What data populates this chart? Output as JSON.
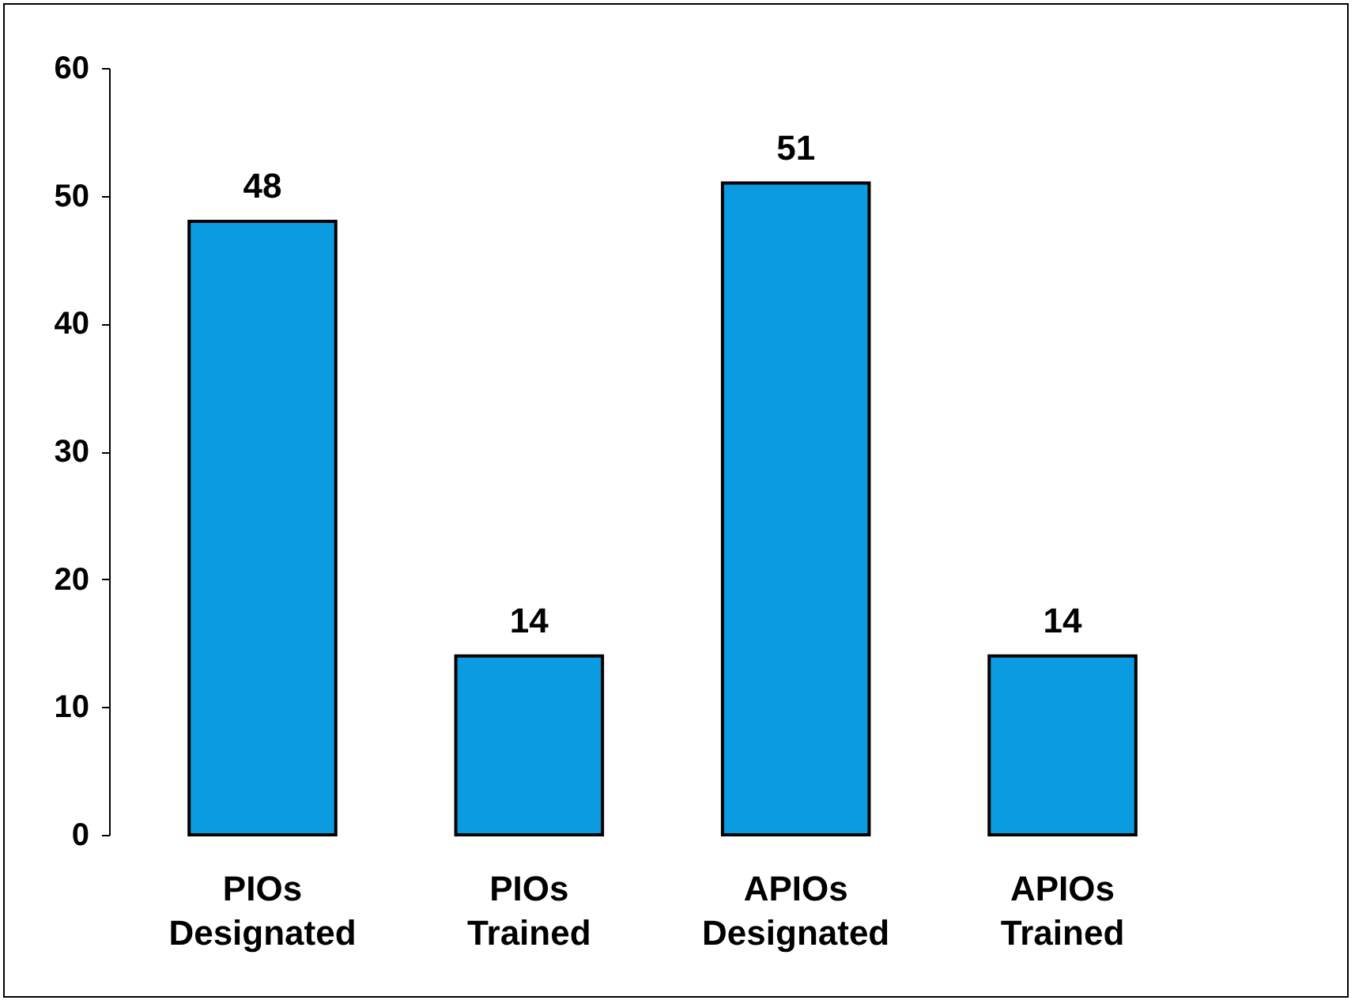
{
  "chart_data": {
    "type": "bar",
    "categories": [
      "PIOs Designated",
      "PIOs Trained",
      "APIOs Designated",
      "APIOs Trained"
    ],
    "values": [
      48,
      14,
      51,
      14
    ],
    "color": "#0a9be0",
    "ylim": [
      0,
      60
    ],
    "yticks": [
      0,
      10,
      20,
      30,
      40,
      50,
      60
    ],
    "data_labels": true,
    "grid": false
  }
}
